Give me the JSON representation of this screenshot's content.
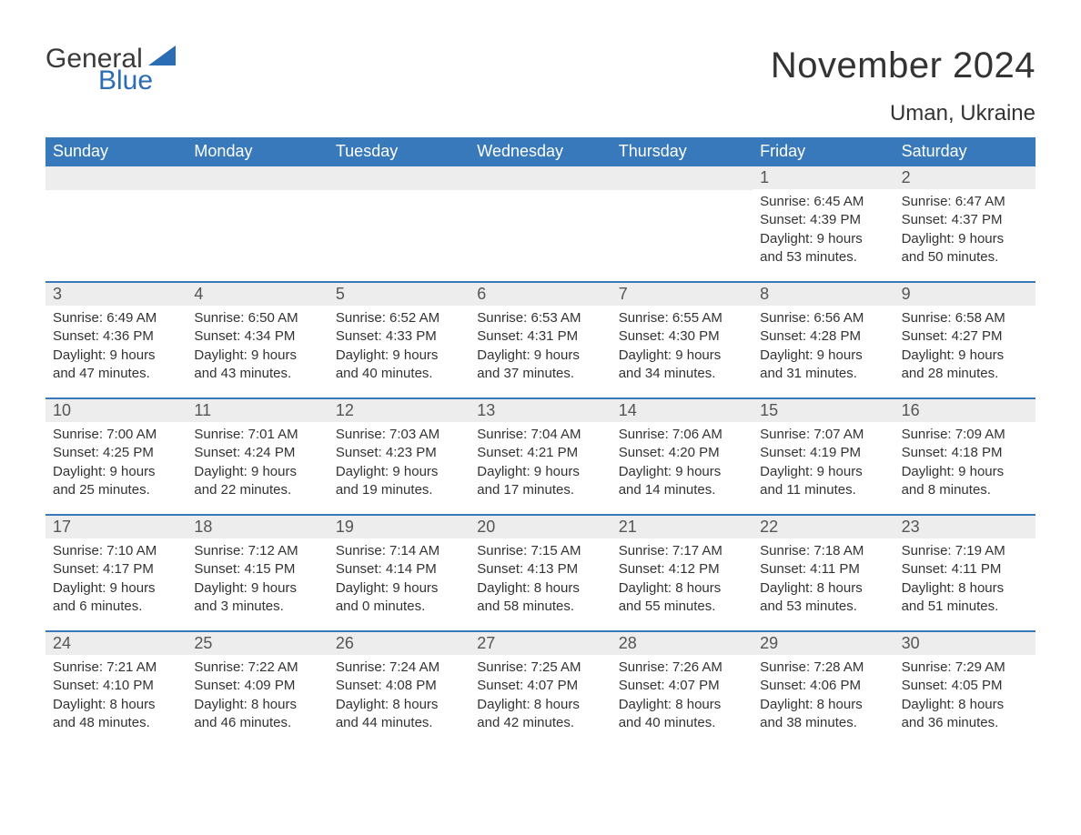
{
  "logo": {
    "general": "General",
    "blue": "Blue"
  },
  "title": "November 2024",
  "location": "Uman, Ukraine",
  "columns": [
    "Sunday",
    "Monday",
    "Tuesday",
    "Wednesday",
    "Thursday",
    "Friday",
    "Saturday"
  ],
  "colors": {
    "header_bg": "#3879bb",
    "header_text": "#ffffff",
    "daynum_bg": "#ededed",
    "daynum_text": "#555555",
    "body_text": "#333333",
    "accent": "#2a6db5"
  },
  "weeks": [
    [
      null,
      null,
      null,
      null,
      null,
      {
        "n": "1",
        "sr": "6:45 AM",
        "ss": "4:39 PM",
        "dl": "9 hours and 53 minutes."
      },
      {
        "n": "2",
        "sr": "6:47 AM",
        "ss": "4:37 PM",
        "dl": "9 hours and 50 minutes."
      }
    ],
    [
      {
        "n": "3",
        "sr": "6:49 AM",
        "ss": "4:36 PM",
        "dl": "9 hours and 47 minutes."
      },
      {
        "n": "4",
        "sr": "6:50 AM",
        "ss": "4:34 PM",
        "dl": "9 hours and 43 minutes."
      },
      {
        "n": "5",
        "sr": "6:52 AM",
        "ss": "4:33 PM",
        "dl": "9 hours and 40 minutes."
      },
      {
        "n": "6",
        "sr": "6:53 AM",
        "ss": "4:31 PM",
        "dl": "9 hours and 37 minutes."
      },
      {
        "n": "7",
        "sr": "6:55 AM",
        "ss": "4:30 PM",
        "dl": "9 hours and 34 minutes."
      },
      {
        "n": "8",
        "sr": "6:56 AM",
        "ss": "4:28 PM",
        "dl": "9 hours and 31 minutes."
      },
      {
        "n": "9",
        "sr": "6:58 AM",
        "ss": "4:27 PM",
        "dl": "9 hours and 28 minutes."
      }
    ],
    [
      {
        "n": "10",
        "sr": "7:00 AM",
        "ss": "4:25 PM",
        "dl": "9 hours and 25 minutes."
      },
      {
        "n": "11",
        "sr": "7:01 AM",
        "ss": "4:24 PM",
        "dl": "9 hours and 22 minutes."
      },
      {
        "n": "12",
        "sr": "7:03 AM",
        "ss": "4:23 PM",
        "dl": "9 hours and 19 minutes."
      },
      {
        "n": "13",
        "sr": "7:04 AM",
        "ss": "4:21 PM",
        "dl": "9 hours and 17 minutes."
      },
      {
        "n": "14",
        "sr": "7:06 AM",
        "ss": "4:20 PM",
        "dl": "9 hours and 14 minutes."
      },
      {
        "n": "15",
        "sr": "7:07 AM",
        "ss": "4:19 PM",
        "dl": "9 hours and 11 minutes."
      },
      {
        "n": "16",
        "sr": "7:09 AM",
        "ss": "4:18 PM",
        "dl": "9 hours and 8 minutes."
      }
    ],
    [
      {
        "n": "17",
        "sr": "7:10 AM",
        "ss": "4:17 PM",
        "dl": "9 hours and 6 minutes."
      },
      {
        "n": "18",
        "sr": "7:12 AM",
        "ss": "4:15 PM",
        "dl": "9 hours and 3 minutes."
      },
      {
        "n": "19",
        "sr": "7:14 AM",
        "ss": "4:14 PM",
        "dl": "9 hours and 0 minutes."
      },
      {
        "n": "20",
        "sr": "7:15 AM",
        "ss": "4:13 PM",
        "dl": "8 hours and 58 minutes."
      },
      {
        "n": "21",
        "sr": "7:17 AM",
        "ss": "4:12 PM",
        "dl": "8 hours and 55 minutes."
      },
      {
        "n": "22",
        "sr": "7:18 AM",
        "ss": "4:11 PM",
        "dl": "8 hours and 53 minutes."
      },
      {
        "n": "23",
        "sr": "7:19 AM",
        "ss": "4:11 PM",
        "dl": "8 hours and 51 minutes."
      }
    ],
    [
      {
        "n": "24",
        "sr": "7:21 AM",
        "ss": "4:10 PM",
        "dl": "8 hours and 48 minutes."
      },
      {
        "n": "25",
        "sr": "7:22 AM",
        "ss": "4:09 PM",
        "dl": "8 hours and 46 minutes."
      },
      {
        "n": "26",
        "sr": "7:24 AM",
        "ss": "4:08 PM",
        "dl": "8 hours and 44 minutes."
      },
      {
        "n": "27",
        "sr": "7:25 AM",
        "ss": "4:07 PM",
        "dl": "8 hours and 42 minutes."
      },
      {
        "n": "28",
        "sr": "7:26 AM",
        "ss": "4:07 PM",
        "dl": "8 hours and 40 minutes."
      },
      {
        "n": "29",
        "sr": "7:28 AM",
        "ss": "4:06 PM",
        "dl": "8 hours and 38 minutes."
      },
      {
        "n": "30",
        "sr": "7:29 AM",
        "ss": "4:05 PM",
        "dl": "8 hours and 36 minutes."
      }
    ]
  ],
  "labels": {
    "sunrise": "Sunrise: ",
    "sunset": "Sunset: ",
    "daylight": "Daylight: "
  }
}
